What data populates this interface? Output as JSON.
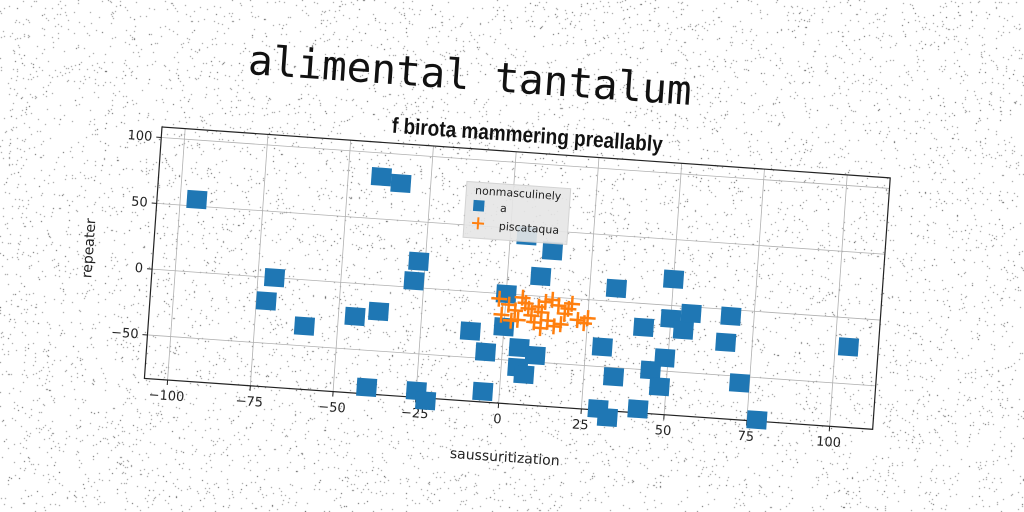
{
  "figure": {
    "suptitle": "alimental tantalum"
  },
  "chart_data": {
    "type": "scatter",
    "title": "f birota mammering preallably",
    "xlabel": "saussuritization",
    "ylabel": "repeater",
    "xlim": [
      -107,
      113
    ],
    "ylim": [
      -83,
      108
    ],
    "xticks": [
      -100,
      -75,
      -50,
      -25,
      0,
      25,
      50,
      75,
      100
    ],
    "yticks": [
      -50,
      0,
      50,
      100
    ],
    "xtick_labels": [
      "−100",
      "−75",
      "−50",
      "−25",
      "0",
      "25",
      "50",
      "75",
      "100"
    ],
    "ytick_labels": [
      "−50",
      "0",
      "50",
      "100"
    ],
    "grid": true,
    "legend": {
      "title": "nonmasculinely",
      "placement": "top-center"
    },
    "series": [
      {
        "name": "a",
        "marker": "square",
        "color": "#1f77b4",
        "points": [
          [
            -95,
            55
          ],
          [
            -40,
            82
          ],
          [
            -34,
            78
          ],
          [
            -70,
            0
          ],
          [
            -72,
            -18
          ],
          [
            -60,
            -35
          ],
          [
            -45,
            -25
          ],
          [
            -38,
            -20
          ],
          [
            -27,
            20
          ],
          [
            -28,
            5
          ],
          [
            -40,
            -78
          ],
          [
            -25,
            -78
          ],
          [
            -22,
            -85
          ],
          [
            -5,
            -75
          ],
          [
            -10,
            -30
          ],
          [
            -5,
            -45
          ],
          [
            0,
            0
          ],
          [
            5,
            45
          ],
          [
            13,
            35
          ],
          [
            10,
            15
          ],
          [
            0,
            -25
          ],
          [
            5,
            -40
          ],
          [
            10,
            -45
          ],
          [
            5,
            -55
          ],
          [
            7,
            -60
          ],
          [
            30,
            -35
          ],
          [
            33,
            10
          ],
          [
            50,
            20
          ],
          [
            34,
            -57
          ],
          [
            49,
            -40
          ],
          [
            45,
            -50
          ],
          [
            48,
            -62
          ],
          [
            42,
            -18
          ],
          [
            50,
            -10
          ],
          [
            54,
            -18
          ],
          [
            56,
            -5
          ],
          [
            68,
            -5
          ],
          [
            67,
            -25
          ],
          [
            72,
            -55
          ],
          [
            78,
            -82
          ],
          [
            104,
            -22
          ],
          [
            30,
            -82
          ],
          [
            33,
            -88
          ],
          [
            42,
            -80
          ]
        ]
      },
      {
        "name": "piscataqua",
        "marker": "plus",
        "color": "#ff7f0e",
        "points": [
          [
            1,
            -8
          ],
          [
            -2,
            -4
          ],
          [
            3,
            -12
          ],
          [
            6,
            -6
          ],
          [
            8,
            -15
          ],
          [
            4,
            -19
          ],
          [
            10,
            -8
          ],
          [
            12,
            -4
          ],
          [
            14,
            -2
          ],
          [
            16,
            -6
          ],
          [
            18,
            -12
          ],
          [
            20,
            -4
          ],
          [
            22,
            -16
          ],
          [
            9,
            -20
          ],
          [
            11,
            -24
          ],
          [
            13,
            -18
          ],
          [
            15,
            -22
          ],
          [
            17,
            -20
          ],
          [
            7,
            -10
          ],
          [
            5,
            -2
          ],
          [
            2,
            -20
          ],
          [
            19,
            -8
          ],
          [
            24,
            -18
          ],
          [
            25,
            -14
          ],
          [
            -1,
            -16
          ],
          [
            11,
            -12
          ]
        ]
      }
    ]
  }
}
